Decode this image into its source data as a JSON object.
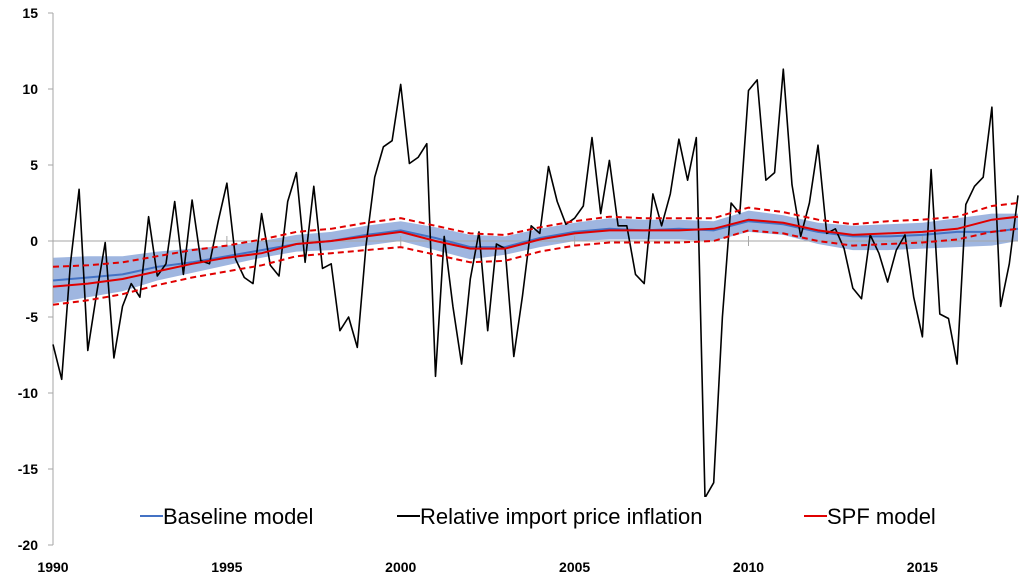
{
  "chart_data": {
    "type": "line",
    "title": "",
    "xlabel": "",
    "ylabel": "",
    "xlim": [
      1990,
      2017.75
    ],
    "ylim": [
      -20,
      15
    ],
    "x_ticks": [
      1990,
      1995,
      2000,
      2005,
      2010,
      2015
    ],
    "y_ticks": [
      -20,
      -15,
      -10,
      -5,
      0,
      5,
      10,
      15
    ],
    "grid": false,
    "legend_position": "bottom",
    "legend": [
      "Baseline model",
      "Relative import price inflation",
      "SPF model"
    ],
    "colors": {
      "baseline": "#4472C4",
      "band": "#8EA9DB",
      "import": "#000000",
      "spf": "#E00000"
    },
    "series": [
      {
        "name": "Relative import price inflation",
        "x": [
          1990.0,
          1990.25,
          1990.5,
          1990.75,
          1991.0,
          1991.25,
          1991.5,
          1991.75,
          1992.0,
          1992.25,
          1992.5,
          1992.75,
          1993.0,
          1993.25,
          1993.5,
          1993.75,
          1994.0,
          1994.25,
          1994.5,
          1994.75,
          1995.0,
          1995.25,
          1995.5,
          1995.75,
          1996.0,
          1996.25,
          1996.5,
          1996.75,
          1997.0,
          1997.25,
          1997.5,
          1997.75,
          1998.0,
          1998.25,
          1998.5,
          1998.75,
          1999.0,
          1999.25,
          1999.5,
          1999.75,
          2000.0,
          2000.25,
          2000.5,
          2000.75,
          2001.0,
          2001.25,
          2001.5,
          2001.75,
          2002.0,
          2002.25,
          2002.5,
          2002.75,
          2003.0,
          2003.25,
          2003.5,
          2003.75,
          2004.0,
          2004.25,
          2004.5,
          2004.75,
          2005.0,
          2005.25,
          2005.5,
          2005.75,
          2006.0,
          2006.25,
          2006.5,
          2006.75,
          2007.0,
          2007.25,
          2007.5,
          2007.75,
          2008.0,
          2008.25,
          2008.5,
          2008.75,
          2009.0,
          2009.25,
          2009.5,
          2009.75,
          2010.0,
          2010.25,
          2010.5,
          2010.75,
          2011.0,
          2011.25,
          2011.5,
          2011.75,
          2012.0,
          2012.25,
          2012.5,
          2012.75,
          2013.0,
          2013.25,
          2013.5,
          2013.75,
          2014.0,
          2014.25,
          2014.5,
          2014.75,
          2015.0,
          2015.25,
          2015.5,
          2015.75,
          2016.0,
          2016.25,
          2016.5,
          2016.75,
          2017.0,
          2017.25,
          2017.5,
          2017.75
        ],
        "values": [
          -6.8,
          -9.1,
          -1.5,
          3.4,
          -7.2,
          -3.5,
          -0.1,
          -7.7,
          -4.3,
          -2.8,
          -3.7,
          1.6,
          -2.3,
          -1.5,
          2.6,
          -2.2,
          2.7,
          -1.3,
          -1.5,
          1.3,
          3.8,
          -1.2,
          -2.4,
          -2.8,
          1.8,
          -1.6,
          -2.3,
          2.6,
          4.5,
          -1.4,
          3.6,
          -1.8,
          -1.5,
          -5.9,
          -5.0,
          -7.0,
          -0.3,
          4.2,
          6.2,
          6.6,
          10.3,
          5.1,
          5.5,
          6.4,
          -8.9,
          0.3,
          -4.3,
          -8.1,
          -2.5,
          0.6,
          -5.9,
          -0.2,
          -0.5,
          -7.6,
          -3.6,
          1.0,
          0.5,
          4.9,
          2.6,
          1.1,
          1.5,
          2.3,
          6.8,
          1.8,
          5.3,
          1.0,
          1.0,
          -2.2,
          -2.8,
          3.1,
          1.0,
          3.1,
          6.7,
          4.0,
          6.8,
          -16.9,
          -15.9,
          -5.0,
          2.5,
          1.8,
          9.9,
          10.6,
          4.0,
          4.5,
          11.3,
          3.7,
          0.3,
          2.5,
          6.3,
          0.5,
          0.8,
          -0.5,
          -3.1,
          -3.8,
          0.4,
          -0.8,
          -2.7,
          -0.6,
          0.4,
          -3.7,
          -6.3,
          4.7,
          -4.8,
          -5.1,
          -8.1,
          2.4,
          3.6,
          4.2,
          8.8,
          -4.3,
          -1.5,
          3.0
        ]
      },
      {
        "name": "Baseline model",
        "x": [
          1990,
          1991,
          1992,
          1993,
          1994,
          1995,
          1996,
          1997,
          1998,
          1999,
          2000,
          2001,
          2002,
          2003,
          2004,
          2005,
          2006,
          2007,
          2008,
          2009,
          2010,
          2011,
          2012,
          2013,
          2014,
          2015,
          2016,
          2017,
          2017.75
        ],
        "values": [
          -2.6,
          -2.4,
          -2.2,
          -1.7,
          -1.4,
          -1.0,
          -0.6,
          -0.2,
          0.0,
          0.4,
          0.7,
          0.2,
          -0.4,
          -0.4,
          0.2,
          0.6,
          0.8,
          0.7,
          0.8,
          0.7,
          1.3,
          1.1,
          0.6,
          0.3,
          0.3,
          0.4,
          0.6,
          0.6,
          0.8
        ],
        "band_lower": [
          -4.1,
          -3.7,
          -3.3,
          -2.6,
          -2.1,
          -1.6,
          -1.1,
          -0.7,
          -0.6,
          -0.3,
          0.0,
          -0.6,
          -1.2,
          -0.9,
          -0.4,
          0.0,
          0.1,
          0.1,
          0.1,
          0.0,
          0.6,
          0.4,
          -0.2,
          -0.6,
          -0.6,
          -0.5,
          -0.4,
          -0.3,
          0.0
        ],
        "band_upper": [
          -1.1,
          -1.0,
          -1.0,
          -0.7,
          -0.5,
          -0.3,
          0.0,
          0.4,
          0.6,
          1.0,
          1.3,
          0.9,
          0.4,
          0.3,
          0.8,
          1.2,
          1.5,
          1.4,
          1.4,
          1.3,
          2.0,
          1.7,
          1.2,
          1.0,
          1.1,
          1.2,
          1.5,
          1.8,
          1.8
        ]
      },
      {
        "name": "SPF model",
        "x": [
          1990,
          1991,
          1992,
          1993,
          1994,
          1995,
          1996,
          1997,
          1998,
          1999,
          2000,
          2001,
          2002,
          2003,
          2004,
          2005,
          2006,
          2007,
          2008,
          2009,
          2010,
          2011,
          2012,
          2013,
          2014,
          2015,
          2016,
          2017,
          2017.75
        ],
        "values": [
          -3.0,
          -2.8,
          -2.5,
          -2.0,
          -1.5,
          -1.1,
          -0.8,
          -0.2,
          0.0,
          0.3,
          0.6,
          0.0,
          -0.5,
          -0.5,
          0.1,
          0.5,
          0.7,
          0.7,
          0.7,
          0.8,
          1.4,
          1.2,
          0.7,
          0.4,
          0.5,
          0.6,
          0.8,
          1.4,
          1.6
        ],
        "dashed_lower": [
          -4.2,
          -3.9,
          -3.5,
          -2.9,
          -2.4,
          -2.0,
          -1.6,
          -1.0,
          -0.8,
          -0.6,
          -0.4,
          -0.9,
          -1.4,
          -1.3,
          -0.7,
          -0.3,
          -0.1,
          -0.1,
          -0.1,
          0.0,
          0.7,
          0.5,
          0.0,
          -0.3,
          -0.2,
          -0.1,
          0.1,
          0.6,
          0.8
        ],
        "dashed_upper": [
          -1.7,
          -1.6,
          -1.4,
          -1.0,
          -0.6,
          -0.3,
          0.1,
          0.6,
          0.8,
          1.2,
          1.5,
          1.0,
          0.5,
          0.4,
          0.9,
          1.3,
          1.6,
          1.5,
          1.5,
          1.5,
          2.2,
          1.9,
          1.4,
          1.1,
          1.3,
          1.4,
          1.6,
          2.3,
          2.5
        ]
      }
    ]
  }
}
